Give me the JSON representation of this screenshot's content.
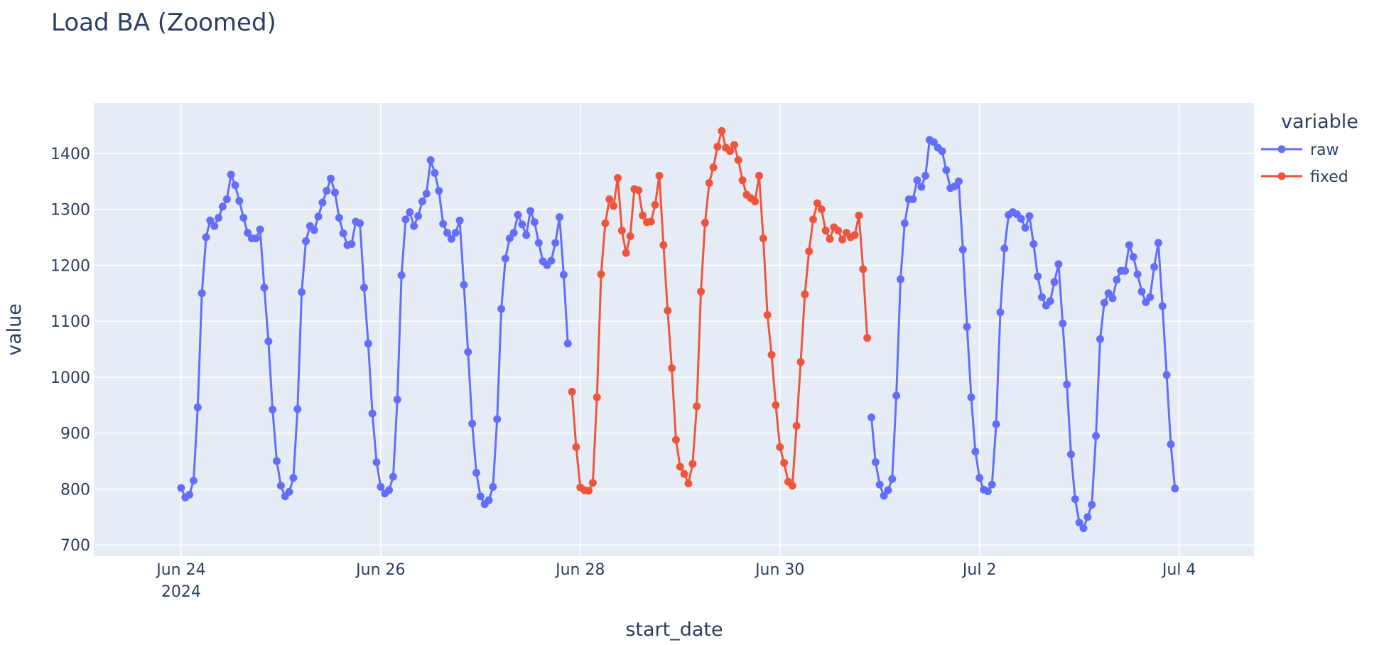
{
  "chart_data": {
    "type": "line",
    "title": "Load BA (Zoomed)",
    "xlabel": "start_date",
    "ylabel": "value",
    "legend_title": "variable",
    "legend_position": "top-right",
    "grid": true,
    "x_range": [
      "2024-06-23 03:00",
      "2024-07-04 18:00"
    ],
    "ylim": [
      680,
      1490
    ],
    "y_ticks": [
      700,
      800,
      900,
      1000,
      1100,
      1200,
      1300,
      1400
    ],
    "x_ticks": [
      {
        "date": "2024-06-24",
        "label": "Jun 24",
        "sublabel": "2024"
      },
      {
        "date": "2024-06-26",
        "label": "Jun 26",
        "sublabel": ""
      },
      {
        "date": "2024-06-28",
        "label": "Jun 28",
        "sublabel": ""
      },
      {
        "date": "2024-06-30",
        "label": "Jun 30",
        "sublabel": ""
      },
      {
        "date": "2024-07-02",
        "label": "Jul 2",
        "sublabel": ""
      },
      {
        "date": "2024-07-04",
        "label": "Jul 4",
        "sublabel": ""
      }
    ],
    "series": [
      {
        "name": "raw",
        "color": "#636efa",
        "start": "2024-06-24 00:00",
        "step_hours": 1,
        "values": [
          802,
          785,
          790,
          815,
          946,
          1150,
          1250,
          1280,
          1270,
          1285,
          1305,
          1318,
          1362,
          1343,
          1315,
          1285,
          1258,
          1248,
          1248,
          1264,
          1160,
          1064,
          942,
          850,
          806,
          787,
          795,
          820,
          943,
          1152,
          1243,
          1270,
          1263,
          1287,
          1312,
          1333,
          1355,
          1330,
          1285,
          1257,
          1236,
          1238,
          1278,
          1275,
          1160,
          1060,
          935,
          848,
          804,
          792,
          798,
          822,
          960,
          1182,
          1282,
          1295,
          1270,
          1288,
          1314,
          1328,
          1388,
          1365,
          1333,
          1274,
          1258,
          1247,
          1258,
          1280,
          1165,
          1045,
          917,
          829,
          787,
          773,
          780,
          804,
          925,
          1122,
          1212,
          1248,
          1258,
          1290,
          1273,
          1254,
          1297,
          1277,
          1240,
          1207,
          1200,
          1208,
          1240,
          1286,
          1183,
          1060,
          null,
          null,
          null,
          null,
          null,
          null,
          null,
          null,
          null,
          null,
          null,
          null,
          null,
          null,
          null,
          null,
          null,
          null,
          null,
          null,
          null,
          null,
          null,
          null,
          null,
          null,
          null,
          null,
          null,
          null,
          null,
          null,
          null,
          null,
          null,
          null,
          null,
          null,
          null,
          null,
          null,
          null,
          null,
          null,
          null,
          null,
          null,
          null,
          null,
          null,
          null,
          null,
          null,
          null,
          null,
          null,
          null,
          null,
          null,
          null,
          null,
          null,
          null,
          null,
          null,
          null,
          null,
          null,
          null,
          null,
          null,
          null,
          928,
          848,
          808,
          788,
          798,
          818,
          967,
          1175,
          1275,
          1318,
          1318,
          1352,
          1340,
          1360,
          1424,
          1420,
          1410,
          1404,
          1370,
          1338,
          1341,
          1350,
          1228,
          1090,
          964,
          867,
          820,
          799,
          796,
          808,
          916,
          1116,
          1230,
          1290,
          1295,
          1291,
          1283,
          1267,
          1288,
          1238,
          1180,
          1143,
          1128,
          1136,
          1170,
          1202,
          1096,
          987,
          862,
          782,
          740,
          730,
          750,
          772,
          895,
          1068,
          1133,
          1150,
          1141,
          1174,
          1190,
          1190,
          1236,
          1215,
          1184,
          1153,
          1134,
          1143,
          1197,
          1240,
          1127,
          1004,
          880,
          801
        ]
      },
      {
        "name": "fixed",
        "color": "#ef553b",
        "start": "2024-06-27 22:00",
        "step_hours": 1,
        "values": [
          974,
          875,
          803,
          798,
          797,
          811,
          964,
          1184,
          1275,
          1318,
          1306,
          1356,
          1262,
          1222,
          1252,
          1336,
          1334,
          1289,
          1277,
          1278,
          1308,
          1360,
          1236,
          1119,
          1016,
          888,
          840,
          827,
          810,
          845,
          948,
          1153,
          1276,
          1347,
          1375,
          1412,
          1440,
          1410,
          1404,
          1415,
          1388,
          1352,
          1326,
          1320,
          1314,
          1360,
          1248,
          1111,
          1040,
          950,
          875,
          847,
          813,
          806,
          913,
          1027,
          1148,
          1225,
          1282,
          1311,
          1300,
          1262,
          1247,
          1268,
          1262,
          1246,
          1258,
          1250,
          1254,
          1289,
          1193,
          1070
        ]
      }
    ]
  }
}
